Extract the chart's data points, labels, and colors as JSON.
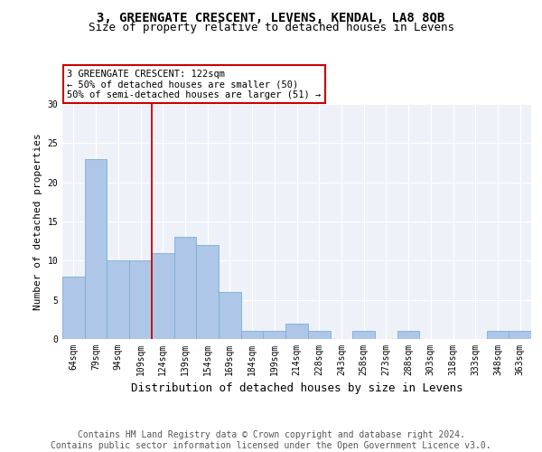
{
  "title1": "3, GREENGATE CRESCENT, LEVENS, KENDAL, LA8 8QB",
  "title2": "Size of property relative to detached houses in Levens",
  "xlabel": "Distribution of detached houses by size in Levens",
  "ylabel": "Number of detached properties",
  "categories": [
    "64sqm",
    "79sqm",
    "94sqm",
    "109sqm",
    "124sqm",
    "139sqm",
    "154sqm",
    "169sqm",
    "184sqm",
    "199sqm",
    "214sqm",
    "228sqm",
    "243sqm",
    "258sqm",
    "273sqm",
    "288sqm",
    "303sqm",
    "318sqm",
    "333sqm",
    "348sqm",
    "363sqm"
  ],
  "values": [
    8,
    23,
    10,
    10,
    11,
    13,
    12,
    6,
    1,
    1,
    2,
    1,
    0,
    1,
    0,
    1,
    0,
    0,
    0,
    1,
    1
  ],
  "bar_color": "#aec6e8",
  "bar_edge_color": "#7aafd4",
  "vline_x": 3.5,
  "vline_color": "#cc0000",
  "annotation_text": "3 GREENGATE CRESCENT: 122sqm\n← 50% of detached houses are smaller (50)\n50% of semi-detached houses are larger (51) →",
  "annotation_box_color": "white",
  "annotation_box_edge_color": "#cc0000",
  "ylim": [
    0,
    30
  ],
  "yticks": [
    0,
    5,
    10,
    15,
    20,
    25,
    30
  ],
  "footer": "Contains HM Land Registry data © Crown copyright and database right 2024.\nContains public sector information licensed under the Open Government Licence v3.0.",
  "bg_color": "#eef2f8",
  "title1_fontsize": 10,
  "title2_fontsize": 9,
  "xlabel_fontsize": 9,
  "ylabel_fontsize": 8,
  "footer_fontsize": 7,
  "tick_fontsize": 7,
  "annot_fontsize": 7.5
}
